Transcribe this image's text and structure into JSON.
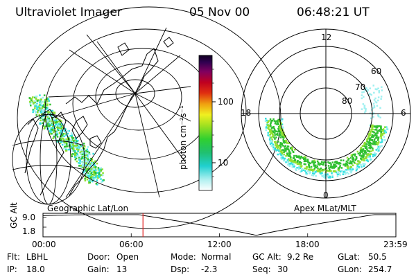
{
  "header": {
    "title": "Ultraviolet Imager",
    "date": "05 Nov 00",
    "time": "06:48:21 UT"
  },
  "colorbar": {
    "label": "photon cm⁻²s⁻¹",
    "ticks": [
      "100",
      "10"
    ]
  },
  "polar": {
    "lat_labels": [
      "80",
      "70",
      "60"
    ],
    "mlt_labels": {
      "top": "12",
      "left": "18",
      "right": "6",
      "bottom": "0"
    }
  },
  "panels": {
    "left_caption": "Geographic Lat/Lon",
    "right_caption": "Apex MLat/MLT"
  },
  "gc_plot": {
    "ylabel": "GC Alt",
    "yticks": [
      "9.0",
      "1.8"
    ],
    "xticks": [
      "00:00",
      "06:00",
      "12:00",
      "18:00",
      "23:59"
    ],
    "marker_hour": 6.8
  },
  "info": {
    "filter_label": "Flt:",
    "filter_value": "LBHL",
    "ip_label": "IP:",
    "ip_value": "18.0",
    "door_label": "Door:",
    "door_value": "Open",
    "gain_label": "Gain:",
    "gain_value": "13",
    "mode_label": "Mode:",
    "mode_value": "Normal",
    "dsp_label": "Dsp:",
    "dsp_value": "-2.3",
    "gcalt_label": "GC Alt:",
    "gcalt_value": "9.2 Re",
    "seq_label": "Seq:",
    "seq_value": "30",
    "glat_label": "GLat:",
    "glat_value": "50.5",
    "glon_label": "GLon:",
    "glon_value": "254.7"
  },
  "colors": {
    "aurora_cyan": "#30e0e0",
    "aurora_green": "#30c030",
    "aurora_lime": "#90e030",
    "marker": "#e02020"
  }
}
